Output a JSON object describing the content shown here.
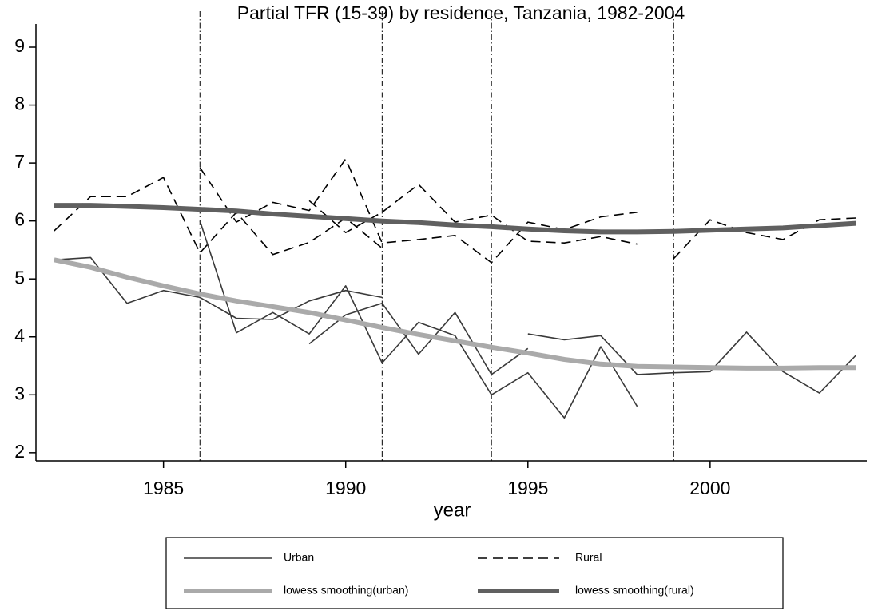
{
  "chart_data": {
    "type": "line",
    "title": "Partial TFR (15-39) by residence, Tanzania, 1982-2004",
    "x_label": "year",
    "xlim": [
      1981.5,
      2004.3
    ],
    "xticks": [
      1985,
      1990,
      1995,
      2000
    ],
    "ylim": [
      1.86,
      9.4
    ],
    "yticks": [
      2,
      3,
      4,
      5,
      6,
      7,
      8,
      9
    ],
    "vlines": [
      1986,
      1991,
      1994,
      1999
    ],
    "series": [
      {
        "name": "Urban",
        "color": "#3a3a3a",
        "line_style": "solid",
        "line_width": 1.6,
        "x": [
          1982,
          1983,
          1984,
          1985,
          1986,
          1987,
          1988,
          1989,
          1990,
          1991,
          null,
          1986,
          1987,
          1988,
          1989,
          1990,
          1991,
          1992,
          1993,
          1994,
          1995,
          1996,
          1997,
          1998,
          null,
          1989,
          1990,
          1991,
          1992,
          1993,
          1994,
          1995,
          null,
          1995,
          1996,
          1997,
          1998,
          1999,
          2000,
          2001,
          2002,
          2003,
          2004
        ],
        "values": [
          5.33,
          5.37,
          4.58,
          4.8,
          4.68,
          4.32,
          4.3,
          4.62,
          4.8,
          4.68,
          null,
          6.0,
          4.07,
          4.42,
          4.05,
          4.88,
          3.55,
          4.25,
          4.02,
          3.0,
          3.38,
          2.6,
          3.83,
          2.8,
          null,
          3.88,
          4.38,
          4.58,
          3.7,
          4.42,
          3.35,
          3.8,
          null,
          4.05,
          3.95,
          4.02,
          3.35,
          3.38,
          3.4,
          4.08,
          3.4,
          3.03,
          3.68
        ]
      },
      {
        "name": "Rural",
        "color": "#000000",
        "line_style": "dashed",
        "line_width": 1.6,
        "x": [
          1982,
          1983,
          1984,
          1985,
          1986,
          1987,
          1988,
          1989,
          1990,
          1991,
          null,
          1986,
          1987,
          1988,
          1989,
          1990,
          1991,
          1992,
          1993,
          1994,
          1995,
          1996,
          1997,
          1998,
          null,
          1989,
          1990,
          1991,
          1992,
          1993,
          1994,
          1995,
          1996,
          1997,
          1998,
          null,
          1999,
          2000,
          2001,
          2002,
          2003,
          2004
        ],
        "values": [
          5.83,
          6.42,
          6.42,
          6.75,
          5.45,
          6.15,
          5.42,
          5.63,
          6.05,
          5.53,
          null,
          6.92,
          5.98,
          6.32,
          6.18,
          7.07,
          5.62,
          5.68,
          5.75,
          5.28,
          5.98,
          5.85,
          6.07,
          6.15,
          null,
          6.35,
          5.8,
          6.15,
          6.63,
          5.98,
          6.1,
          5.65,
          5.62,
          5.73,
          5.6,
          null,
          5.35,
          6.02,
          5.8,
          5.68,
          6.02,
          6.05
        ]
      },
      {
        "name": "lowess smoothing(urban)",
        "color": "#aaaaaa",
        "line_style": "solid",
        "line_width": 6,
        "x": [
          1982,
          1983,
          1984,
          1985,
          1986,
          1987,
          1988,
          1989,
          1990,
          1991,
          1992,
          1993,
          1994,
          1995,
          1996,
          1997,
          1998,
          1999,
          2000,
          2001,
          2002,
          2003,
          2004
        ],
        "values": [
          5.33,
          5.2,
          5.03,
          4.88,
          4.74,
          4.62,
          4.52,
          4.42,
          4.29,
          4.16,
          4.04,
          3.93,
          3.82,
          3.72,
          3.61,
          3.53,
          3.49,
          3.48,
          3.47,
          3.46,
          3.46,
          3.47,
          3.47
        ]
      },
      {
        "name": "lowess smoothing(rural)",
        "color": "#606060",
        "line_style": "solid",
        "line_width": 6,
        "x": [
          1982,
          1983,
          1984,
          1985,
          1986,
          1987,
          1988,
          1989,
          1990,
          1991,
          1992,
          1993,
          1994,
          1995,
          1996,
          1997,
          1998,
          1999,
          2000,
          2001,
          2002,
          2003,
          2004
        ],
        "values": [
          6.27,
          6.27,
          6.25,
          6.23,
          6.2,
          6.17,
          6.12,
          6.08,
          6.04,
          6.0,
          5.97,
          5.93,
          5.9,
          5.86,
          5.83,
          5.81,
          5.81,
          5.82,
          5.84,
          5.86,
          5.88,
          5.92,
          5.96
        ]
      }
    ]
  }
}
